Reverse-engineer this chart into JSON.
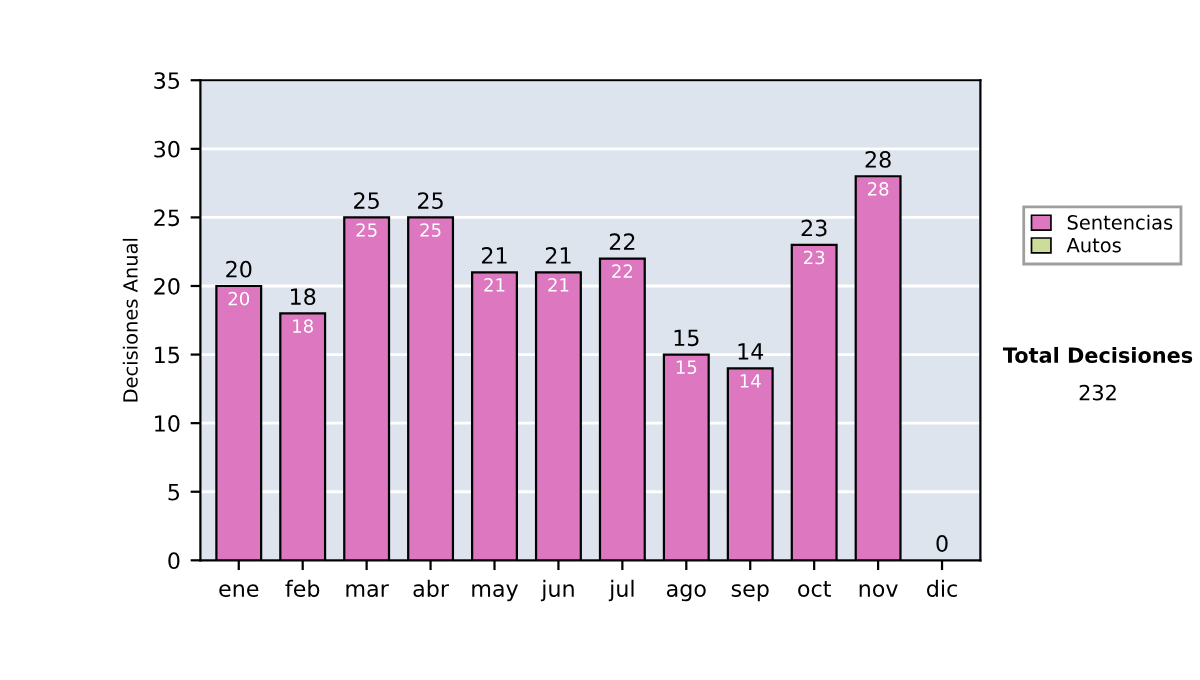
{
  "chart_data": {
    "type": "bar",
    "stacked": true,
    "ylabel": "Decisiones Anual",
    "categories": [
      "ene",
      "feb",
      "mar",
      "abr",
      "may",
      "jun",
      "jul",
      "ago",
      "sep",
      "oct",
      "nov",
      "dic"
    ],
    "series": [
      {
        "name": "Sentencias",
        "color": "#dd77c0",
        "values": [
          20,
          18,
          25,
          25,
          21,
          21,
          22,
          15,
          14,
          23,
          28,
          0
        ],
        "value_labels": [
          "20",
          "18",
          "25",
          "25",
          "21",
          "21",
          "22",
          "15",
          "14",
          "23",
          "28",
          null
        ]
      },
      {
        "name": "Autos",
        "color": "#ccdd99",
        "values": [
          0,
          0,
          0,
          0,
          0,
          0,
          0,
          0,
          0,
          0,
          0,
          0
        ]
      }
    ],
    "totals": [
      "20",
      "18",
      "25",
      "25",
      "21",
      "21",
      "22",
      "15",
      "14",
      "23",
      "28",
      "0"
    ],
    "ylim": [
      0,
      35
    ],
    "yticks": [
      0,
      5,
      10,
      15,
      20,
      25,
      30,
      35
    ],
    "grid": "y",
    "legend": "right",
    "annotations": [
      "Total Decisiones",
      "232"
    ]
  }
}
